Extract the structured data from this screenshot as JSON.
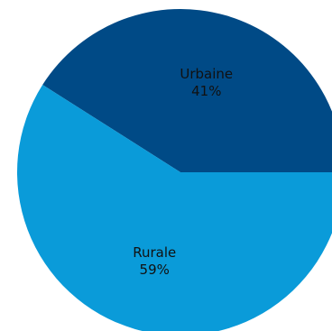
{
  "chart_data": {
    "type": "pie",
    "slices": [
      {
        "label": "Urbaine",
        "value": 41,
        "value_label": "41%",
        "color": "#004a86"
      },
      {
        "label": "Rurale",
        "value": 59,
        "value_label": "59%",
        "color": "#0a9bd9"
      }
    ],
    "legend": "none"
  }
}
